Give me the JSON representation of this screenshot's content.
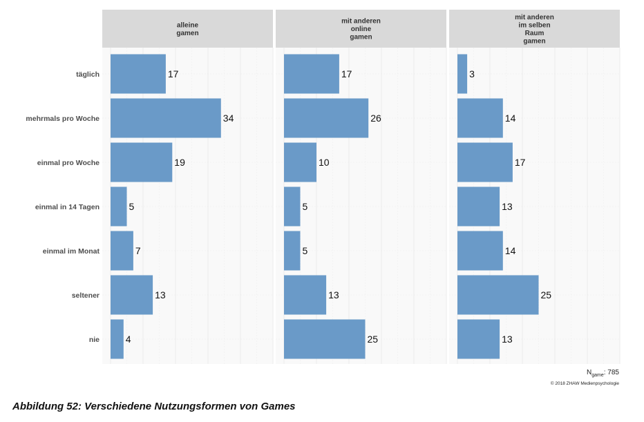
{
  "chart_data": {
    "type": "bar",
    "orientation": "horizontal",
    "categories": [
      "täglich",
      "mehrmals pro Woche",
      "einmal pro Woche",
      "einmal in 14 Tagen",
      "einmal im Monat",
      "seltener",
      "nie"
    ],
    "panels": [
      {
        "title_lines": [
          "alleine",
          "gamen"
        ],
        "values": [
          17,
          34,
          19,
          5,
          7,
          13,
          4
        ]
      },
      {
        "title_lines": [
          "mit anderen",
          "online",
          "gamen"
        ],
        "values": [
          17,
          26,
          10,
          5,
          5,
          13,
          25
        ]
      },
      {
        "title_lines": [
          "mit anderen",
          "im selben",
          "Raum",
          "gamen"
        ],
        "values": [
          3,
          14,
          17,
          13,
          14,
          25,
          13
        ]
      }
    ],
    "xlim": [
      0,
      50
    ],
    "grid": true,
    "bar_color": "#6a9ac8",
    "panel_background": "#f9f9f9",
    "strip_background": "#d9d9d9"
  },
  "footnote": {
    "n_label": "N",
    "n_subscript": "game",
    "n_value": ": 785",
    "copyright": "© 2018 ZHAW Medienpsychologie"
  },
  "caption": "Abbildung 52: Verschiedene Nutzungsformen von Games"
}
